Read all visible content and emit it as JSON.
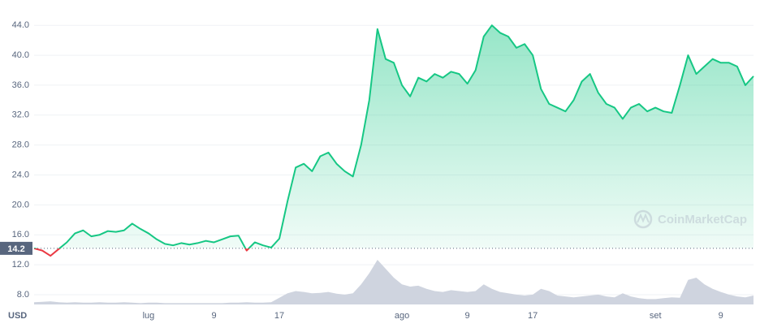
{
  "chart_data": {
    "type": "area",
    "categories": [
      null,
      null,
      null,
      null,
      null,
      null,
      null,
      null,
      null,
      null,
      null,
      null,
      null,
      null,
      "lug",
      null,
      null,
      null,
      null,
      null,
      null,
      null,
      "9",
      null,
      null,
      null,
      null,
      null,
      null,
      null,
      "17",
      null,
      null,
      null,
      null,
      null,
      null,
      null,
      null,
      null,
      null,
      null,
      null,
      null,
      null,
      "ago",
      null,
      null,
      null,
      null,
      null,
      null,
      null,
      "9",
      null,
      null,
      null,
      null,
      null,
      null,
      null,
      "17",
      null,
      null,
      null,
      null,
      null,
      null,
      null,
      null,
      null,
      null,
      null,
      null,
      null,
      null,
      "set",
      null,
      null,
      null,
      null,
      null,
      null,
      null,
      "9",
      null,
      null,
      null,
      null
    ],
    "series": [
      {
        "name": "Price",
        "values": [
          14.2,
          13.9,
          13.2,
          14.1,
          15.0,
          16.2,
          16.6,
          15.8,
          16.0,
          16.5,
          16.4,
          16.6,
          17.5,
          16.8,
          16.2,
          15.4,
          14.8,
          14.6,
          14.9,
          14.7,
          14.9,
          15.2,
          15.0,
          15.4,
          15.8,
          15.9,
          13.9,
          15.0,
          14.6,
          14.3,
          15.5,
          20.5,
          25,
          25.5,
          24.5,
          26.5,
          27,
          25.5,
          24.5,
          23.8,
          28,
          34,
          43.5,
          39.5,
          39,
          36,
          34.5,
          37,
          36.5,
          37.5,
          37,
          37.8,
          37.5,
          36.2,
          38,
          42.5,
          44,
          43,
          42.5,
          41,
          41.5,
          40,
          35.5,
          33.5,
          33,
          32.5,
          34,
          36.5,
          37.5,
          35,
          33.5,
          33,
          31.5,
          33,
          33.5,
          32.5,
          33,
          32.5,
          32.3,
          36,
          40,
          37.5,
          38.5,
          39.5,
          39,
          39,
          38.5,
          36,
          37.2
        ]
      },
      {
        "name": "Volume",
        "axis": "volume",
        "color": "#cfd4df",
        "values": [
          5,
          6,
          7,
          5,
          4,
          5,
          4,
          4,
          5,
          4,
          4,
          5,
          4,
          3,
          4,
          4,
          3,
          3,
          3,
          3,
          3,
          3,
          3,
          3,
          4,
          4,
          5,
          4,
          4,
          5,
          15,
          25,
          30,
          28,
          25,
          26,
          28,
          24,
          22,
          25,
          45,
          70,
          100,
          80,
          60,
          45,
          40,
          42,
          35,
          30,
          28,
          32,
          30,
          28,
          30,
          45,
          35,
          28,
          25,
          22,
          20,
          22,
          35,
          30,
          20,
          18,
          16,
          18,
          20,
          22,
          18,
          16,
          25,
          18,
          14,
          12,
          12,
          14,
          16,
          15,
          55,
          60,
          45,
          35,
          28,
          22,
          18,
          16,
          20
        ]
      }
    ],
    "baseline": 14.2,
    "up_color": "#16c784",
    "down_color": "#ea3943",
    "ylim": [
      6.7,
      46.3
    ],
    "yticks": [
      {
        "value": 8,
        "label": "8.0"
      },
      {
        "value": 12,
        "label": "12.0"
      },
      {
        "value": 16,
        "label": "16.0"
      },
      {
        "value": 20,
        "label": "20.0"
      },
      {
        "value": 24,
        "label": "24.0"
      },
      {
        "value": 28,
        "label": "28.0"
      },
      {
        "value": 32,
        "label": "32.0"
      },
      {
        "value": 36,
        "label": "36.0"
      },
      {
        "value": 40,
        "label": "40.0"
      },
      {
        "value": 44,
        "label": "44.0"
      }
    ],
    "volume_lim": [
      0,
      100
    ],
    "grid": true,
    "currency": "USD",
    "watermark": "CoinMarketCap"
  }
}
